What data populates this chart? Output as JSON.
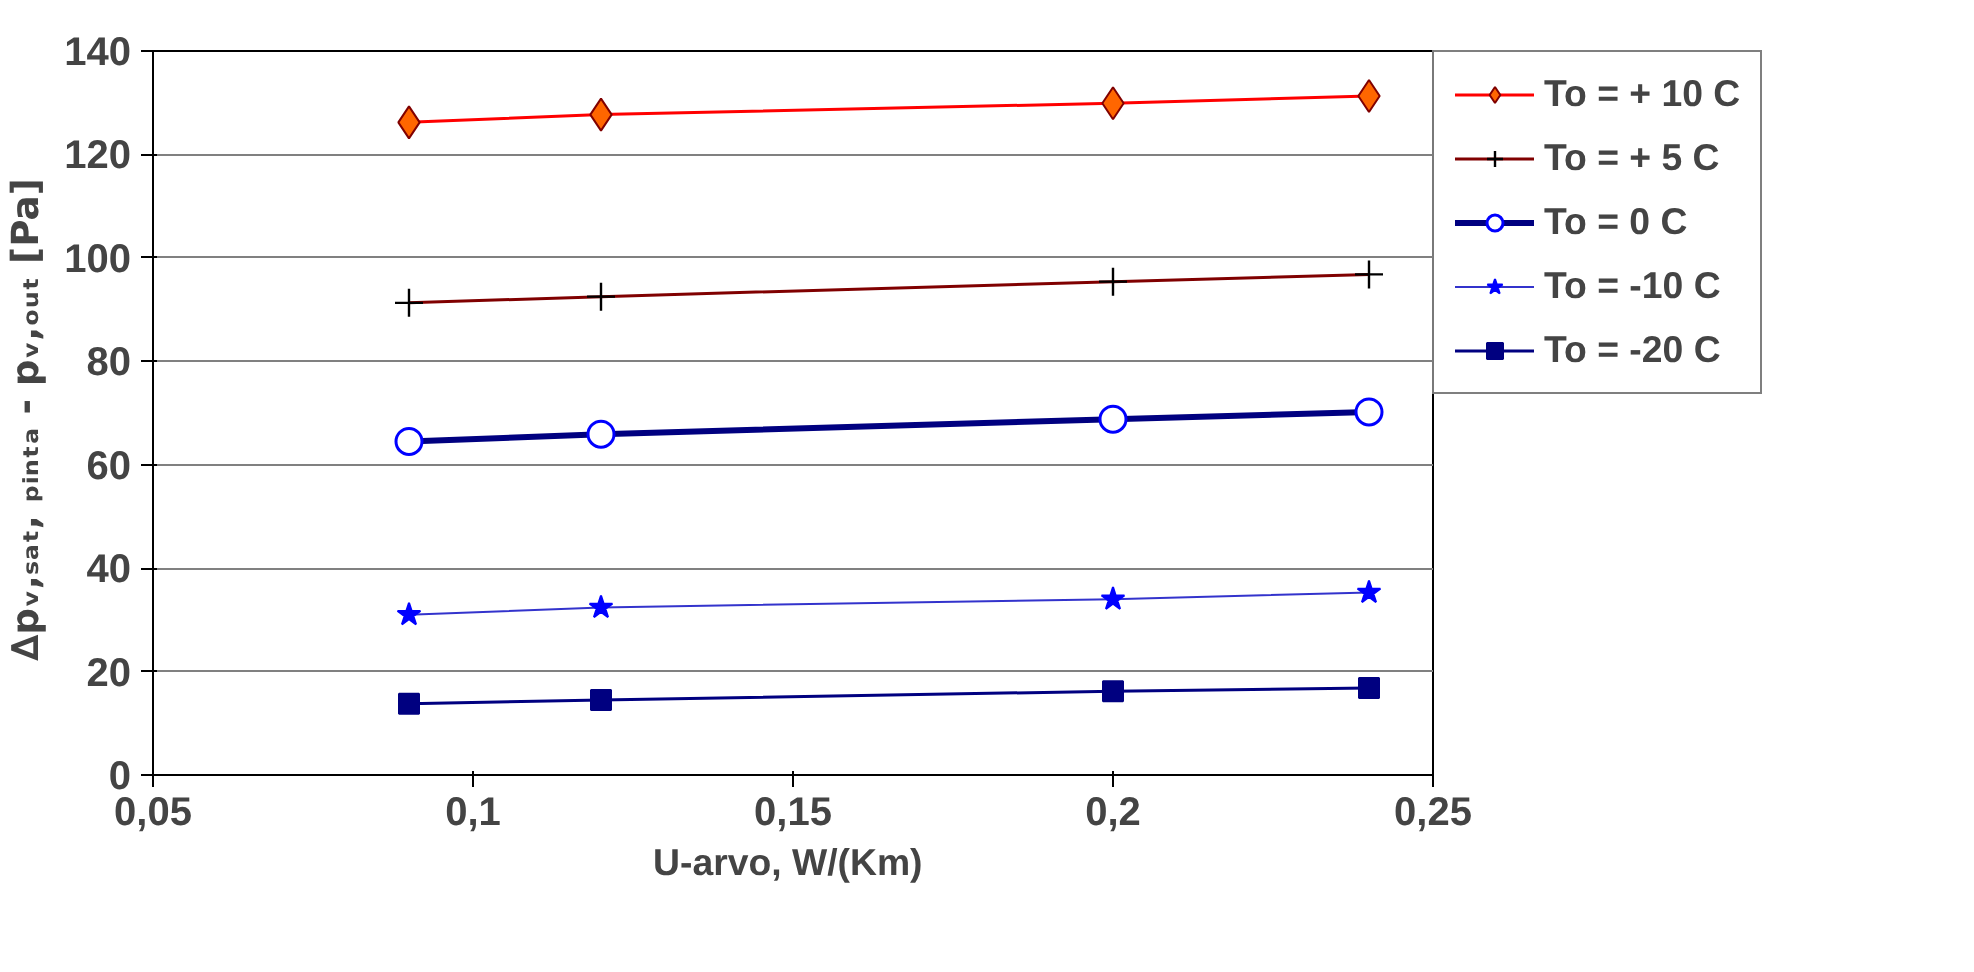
{
  "chart_data": {
    "type": "line",
    "xlabel": "U-arvo,  W/(Km)",
    "ylabel": "∆pᵥ,ₛₐₜ, ₚᵢₙₜₐ - pᵥ,ₒᵤₜ  [Pa]",
    "x": [
      0.09,
      0.12,
      0.2,
      0.24
    ],
    "xlim": [
      0.05,
      0.25
    ],
    "xticks": [
      {
        "value": 0.05,
        "label": "0,05"
      },
      {
        "value": 0.1,
        "label": "0,1"
      },
      {
        "value": 0.15,
        "label": "0,15"
      },
      {
        "value": 0.2,
        "label": "0,2"
      },
      {
        "value": 0.25,
        "label": "0,25"
      }
    ],
    "ylim": [
      0,
      140
    ],
    "yticks": [
      0,
      20,
      40,
      60,
      80,
      100,
      120,
      140
    ],
    "grid": "y",
    "legend": "right",
    "series": [
      {
        "name": "To = + 10 C",
        "color": "#ff0000",
        "marker": "diamond",
        "values": [
          126.2,
          127.7,
          129.9,
          131.3
        ]
      },
      {
        "name": "To = + 5 C",
        "color": "#800000",
        "marker": "cross",
        "values": [
          91.3,
          92.5,
          95.4,
          96.8
        ]
      },
      {
        "name": "To = 0 C",
        "color": "#000080",
        "marker": "circle",
        "values": [
          64.5,
          65.9,
          68.8,
          70.2
        ]
      },
      {
        "name": "To = -10 C",
        "color": "#3333cc",
        "marker": "star",
        "values": [
          31,
          32.4,
          34,
          35.3
        ]
      },
      {
        "name": "To = -20 C",
        "color": "#000080",
        "marker": "square",
        "values": [
          13.8,
          14.5,
          16.2,
          16.8
        ]
      }
    ]
  }
}
